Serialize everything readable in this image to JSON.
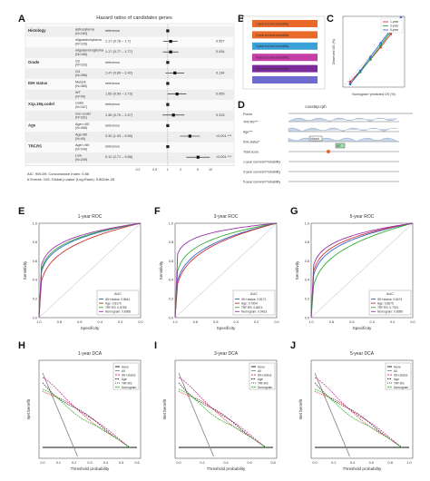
{
  "panel_letters": [
    "A",
    "B",
    "C",
    "D",
    "E",
    "F",
    "G",
    "H",
    "I",
    "J"
  ],
  "forest": {
    "title": "Hazard ratios of candidates genes",
    "rows": [
      {
        "var": "Histology",
        "level": "astrocytoma",
        "n": "(N=184)",
        "hr": "reference",
        "p": ""
      },
      {
        "var": "",
        "level": "oligoastrocytoma",
        "n": "(N=129)",
        "hr": "1.17 (0.78 – 1.7)",
        "p": "0.557"
      },
      {
        "var": "",
        "level": "oligodendroglioma",
        "n": "(N=185)",
        "hr": "1.17 (0.77 – 1.77)",
        "p": "0.434"
      },
      {
        "var": "Grade",
        "level": "G2",
        "n": "(N=232)",
        "hr": "reference",
        "p": ""
      },
      {
        "var": "",
        "level": "G3",
        "n": "(N=266)",
        "hr": "1.47 (0.89 – 2.42)",
        "p": "0.134"
      },
      {
        "var": "IDH status",
        "level": "Mutant",
        "n": "(N=380)",
        "hr": "reference",
        "p": ""
      },
      {
        "var": "",
        "level": "WT",
        "n": "(N=90)",
        "hr": "1.65 (0.99 – 2.73)",
        "p": "0.055"
      },
      {
        "var": "X1p.19q.codel",
        "level": "codel",
        "n": "(N=167)",
        "hr": "reference",
        "p": ""
      },
      {
        "var": "",
        "level": "non-codel",
        "n": "(N=331)",
        "hr": "1.36 (0.75 – 2.47)",
        "p": "0.315"
      },
      {
        "var": "Age",
        "level": "Age<=60",
        "n": "(N=458)",
        "hr": "reference",
        "p": ""
      },
      {
        "var": "",
        "level": "Age>60",
        "n": "(N=40)",
        "hr": "3.30 (1.93 – 5.66)",
        "p": "<0.001 ***"
      },
      {
        "var": "TRF.RS",
        "level": "Age<=60",
        "n": "(N=249)",
        "hr": "reference",
        "p": ""
      },
      {
        "var": "",
        "level": "Low",
        "n": "(N=249)",
        "hr": "5.12 (2.71 – 9.68)",
        "p": "<0.001 ***"
      }
    ],
    "hr_values": [
      1,
      1.17,
      1.17,
      1,
      1.47,
      1,
      1.65,
      1,
      1.36,
      1,
      3.3,
      1,
      5.12
    ],
    "ci_low": [
      null,
      0.78,
      0.77,
      null,
      0.89,
      null,
      0.99,
      null,
      0.75,
      null,
      1.93,
      null,
      2.71
    ],
    "ci_high": [
      null,
      1.7,
      1.77,
      null,
      2.42,
      null,
      2.73,
      null,
      2.47,
      null,
      5.66,
      null,
      9.68
    ],
    "footnote1": "AIC: 905.59; Concordance Index: 0.86",
    "footnote2": "# Events: 105; Global p-value (Log-Rank): 5.8624e-28",
    "axis_ticks": [
      "0.2",
      "0.5",
      "1",
      "2",
      "5",
      "10"
    ]
  },
  "nomogram_b": {
    "bars": [
      {
        "label": "1-year survival probability",
        "color": "#e8692a"
      },
      {
        "label": "2-year survival probability",
        "color": "#e8692a"
      },
      {
        "label": "3-year survival probability",
        "color": "#3aa0d8"
      },
      {
        "label": "4-year survival probability",
        "color": "#c53ea8"
      },
      {
        "label": "5-year survival probability",
        "color": "#7c2a9c"
      },
      {
        "label": "",
        "color": "#6f6ad0"
      }
    ]
  },
  "calibration_c": {
    "xlabel": "Nomogram−predicted OS (%)",
    "ylabel": "Observed OS (%)",
    "legend": [
      "1-year",
      "3-year",
      "5-year"
    ],
    "colors": [
      "#e0323a",
      "#27a743",
      "#3866d0"
    ]
  },
  "nomogram_d": {
    "title": "coxstep.rph",
    "rows": [
      "TRF.RS***",
      "Age***",
      "IDH.status*",
      "Total score",
      "1-year survival Probability",
      "3-year survival Probability",
      "5-year survival Probability"
    ],
    "points_label": "Points",
    "box_labels": [
      "Mutant",
      "WT"
    ]
  },
  "roc": [
    {
      "title": "1-year ROC",
      "legend_title": "AUC",
      "items": [
        "IDH status: 0.8641",
        "Age: 0.8170",
        "TRF.RS: 0.8755",
        "Nomogram: 0.8956"
      ]
    },
    {
      "title": "3-year ROC",
      "legend_title": "AUC",
      "items": [
        "IDH status: 0.8172",
        "Age: 0.7994",
        "TRF.RS: 0.8674",
        "Nomogram: 0.9423"
      ]
    },
    {
      "title": "5-year ROC",
      "legend_title": "AUC",
      "items": [
        "IDH status: 0.8474",
        "Age: 0.8675",
        "TRF.RS: 0.7921",
        "Nomogram: 0.8950"
      ]
    }
  ],
  "roc_axes": {
    "xlabel": "Specificity",
    "ylabel": "Sensitivity",
    "xticks": [
      "1.0",
      "0.8",
      "0.6",
      "0.4",
      "0.2",
      "0.0"
    ],
    "yticks": [
      "0.0",
      "0.2",
      "0.4",
      "0.6",
      "0.8",
      "1.0"
    ]
  },
  "roc_colors": [
    "#3366cc",
    "#cc3333",
    "#33aa33",
    "#9933aa"
  ],
  "dca": [
    {
      "title": "1-year DCA",
      "legend": [
        "None",
        "All",
        "IDH status",
        "Age",
        "TRF.RS",
        "Nomogram"
      ],
      "xticks": [
        "0.0",
        "0.1",
        "0.2",
        "0.3",
        "0.4",
        "0.5",
        "0.6"
      ]
    },
    {
      "title": "3-year DCA",
      "legend": [
        "None",
        "All",
        "IDH.status",
        "Age",
        "TRF.RS",
        "Nomogram"
      ],
      "xticks": [
        "0.0",
        "0.2",
        "0.4",
        "0.6",
        "0.8"
      ]
    },
    {
      "title": "5-year DCA",
      "legend": [
        "None",
        "All",
        "IDH.status",
        "Age",
        "TRF.RS",
        "Nomogram"
      ],
      "xticks": [
        "0.0",
        "0.2",
        "0.4",
        "0.6",
        "0.8",
        "1.0"
      ]
    }
  ],
  "dca_axes": {
    "xlabel": "Threshold probability",
    "ylabel": "Net benefit"
  },
  "dca_colors": [
    "#111111",
    "#888888",
    "#cc3399",
    "#333333",
    "#cc2222",
    "#44bb44"
  ],
  "chart_data": [
    {
      "type": "table",
      "title": "Hazard ratios of candidates genes",
      "categories": [
        "oligoastrocytoma",
        "oligodendroglioma",
        "G3",
        "WT",
        "non-codel",
        "Age>60",
        "Low"
      ],
      "values": [
        1.17,
        1.17,
        1.47,
        1.65,
        1.36,
        3.3,
        5.12
      ]
    },
    {
      "type": "line",
      "title": "1-year ROC",
      "series": [
        {
          "name": "IDH status",
          "values": [
            0.8641
          ]
        },
        {
          "name": "Age",
          "values": [
            0.817
          ]
        },
        {
          "name": "TRF.RS",
          "values": [
            0.8755
          ]
        },
        {
          "name": "Nomogram",
          "values": [
            0.8956
          ]
        }
      ],
      "xlabel": "Specificity",
      "ylabel": "Sensitivity",
      "xlim": [
        1,
        0
      ],
      "ylim": [
        0,
        1
      ]
    },
    {
      "type": "line",
      "title": "3-year ROC",
      "series": [
        {
          "name": "IDH status",
          "values": [
            0.8172
          ]
        },
        {
          "name": "Age",
          "values": [
            0.7994
          ]
        },
        {
          "name": "TRF.RS",
          "values": [
            0.8674
          ]
        },
        {
          "name": "Nomogram",
          "values": [
            0.9423
          ]
        }
      ],
      "xlabel": "Specificity",
      "ylabel": "Sensitivity",
      "xlim": [
        1,
        0
      ],
      "ylim": [
        0,
        1
      ]
    },
    {
      "type": "line",
      "title": "5-year ROC",
      "series": [
        {
          "name": "IDH status",
          "values": [
            0.8474
          ]
        },
        {
          "name": "Age",
          "values": [
            0.8675
          ]
        },
        {
          "name": "TRF.RS",
          "values": [
            0.7921
          ]
        },
        {
          "name": "Nomogram",
          "values": [
            0.895
          ]
        }
      ],
      "xlabel": "Specificity",
      "ylabel": "Sensitivity",
      "xlim": [
        1,
        0
      ],
      "ylim": [
        0,
        1
      ]
    },
    {
      "type": "line",
      "title": "1-year DCA",
      "xlabel": "Threshold probability",
      "ylabel": "Net benefit",
      "xlim": [
        0,
        0.6
      ]
    },
    {
      "type": "line",
      "title": "3-year DCA",
      "xlabel": "Threshold probability",
      "ylabel": "Net benefit",
      "xlim": [
        0,
        0.8
      ]
    },
    {
      "type": "line",
      "title": "5-year DCA",
      "xlabel": "Threshold probability",
      "ylabel": "Net benefit",
      "xlim": [
        0,
        1.0
      ]
    }
  ]
}
